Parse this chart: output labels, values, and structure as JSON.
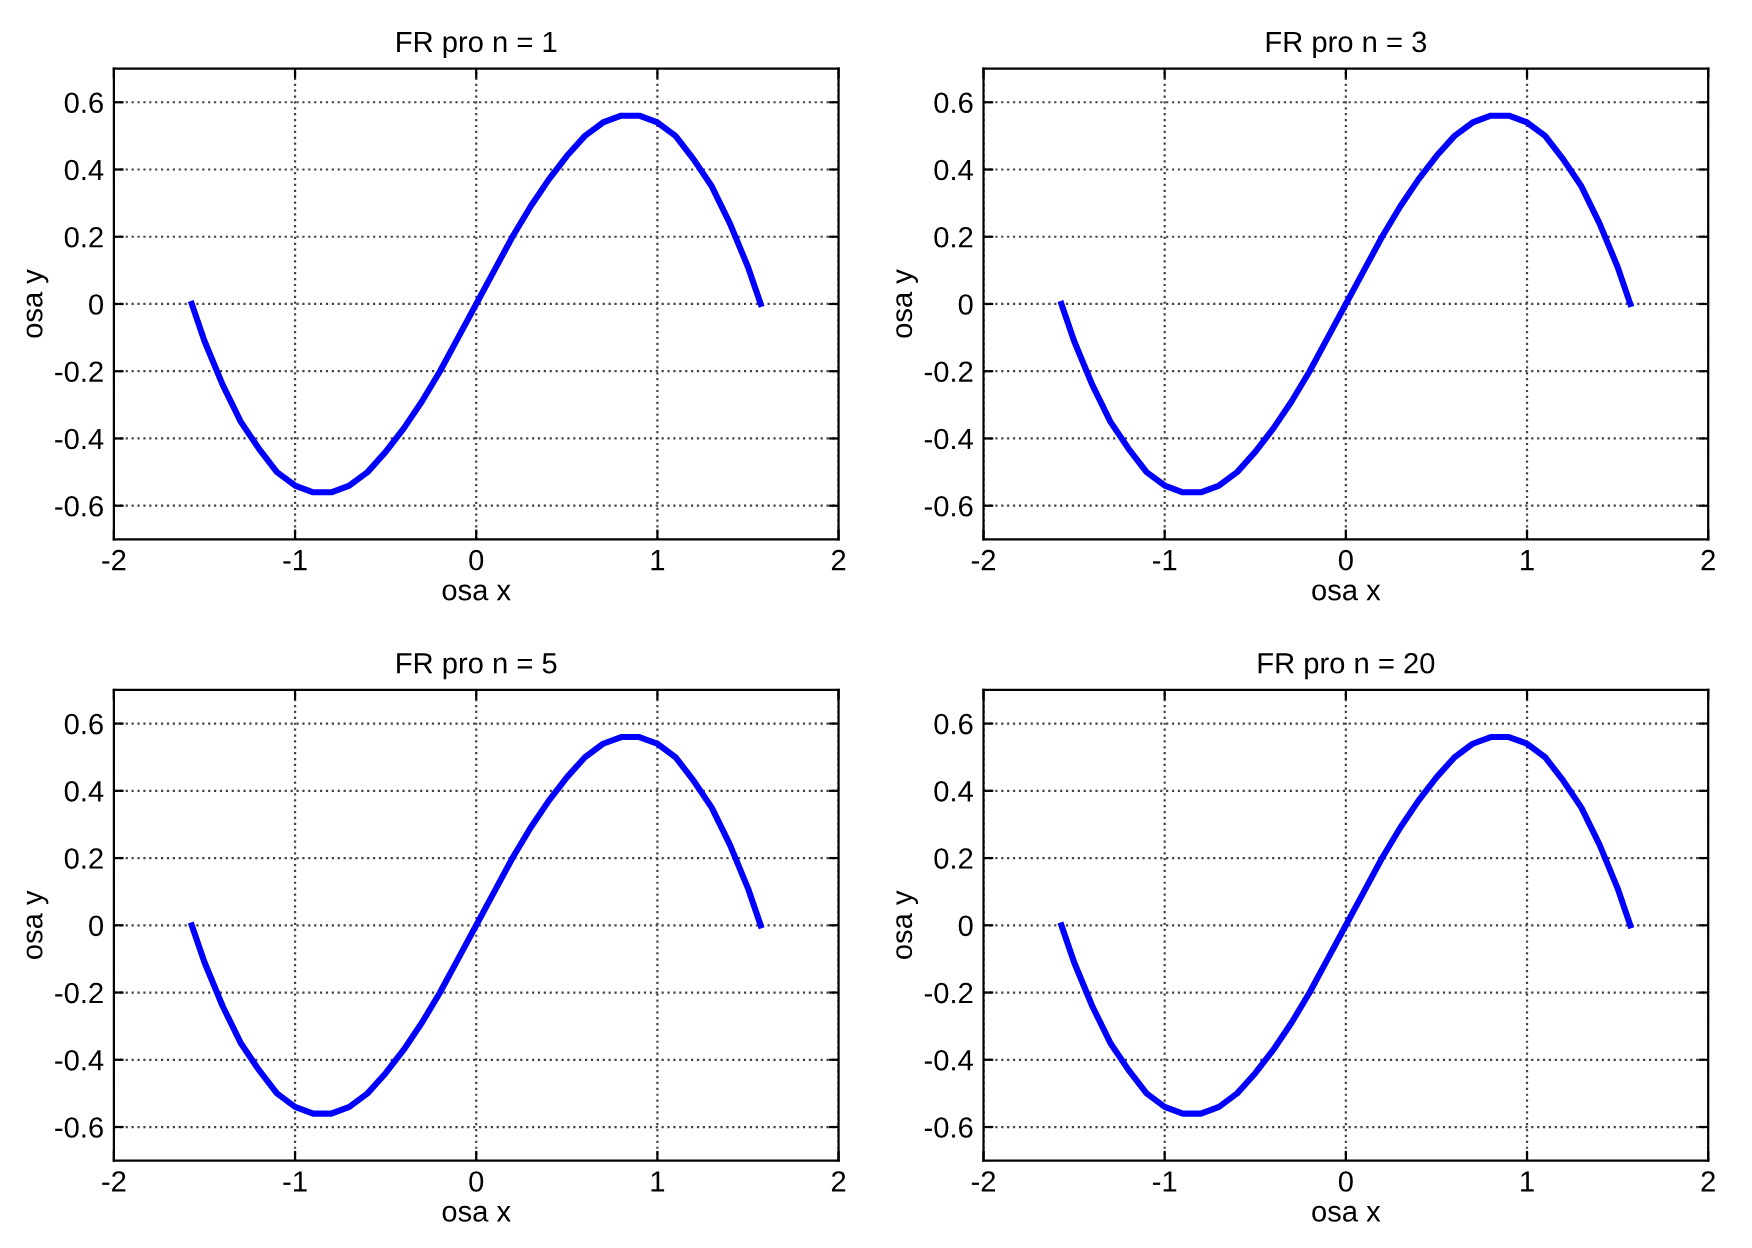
{
  "chart_data": [
    {
      "type": "line",
      "title": "FR pro n = 1",
      "xlabel": "osa x",
      "ylabel": "osa y",
      "xlim": [
        -2,
        2
      ],
      "xticks": [
        -2,
        -1,
        0,
        1,
        2
      ],
      "ylim": [
        -0.7,
        0.7
      ],
      "yticks": [
        -0.6,
        -0.4,
        -0.2,
        0,
        0.2,
        0.4,
        0.6
      ],
      "grid": true,
      "line_style": "solid",
      "marker": "none",
      "series": [
        {
          "color": "#0000ff",
          "x": [
            -1.57,
            -1.5,
            -1.4,
            -1.3,
            -1.2,
            -1.1,
            -1.0,
            -0.9,
            -0.8,
            -0.7,
            -0.6,
            -0.5,
            -0.4,
            -0.3,
            -0.2,
            -0.1,
            0,
            0.1,
            0.2,
            0.3,
            0.4,
            0.5,
            0.6,
            0.7,
            0.8,
            0.9,
            1.0,
            1.1,
            1.2,
            1.3,
            1.4,
            1.5,
            1.57
          ],
          "values": [
            0.0,
            -0.11,
            -0.24,
            -0.35,
            -0.43,
            -0.5,
            -0.54,
            -0.56,
            -0.56,
            -0.54,
            -0.5,
            -0.44,
            -0.37,
            -0.29,
            -0.2,
            -0.1,
            0,
            0.1,
            0.2,
            0.29,
            0.37,
            0.44,
            0.5,
            0.54,
            0.56,
            0.56,
            0.54,
            0.5,
            0.43,
            0.35,
            0.24,
            0.11,
            0.0
          ]
        }
      ]
    },
    {
      "type": "line",
      "title": "FR pro n = 3",
      "xlabel": "osa x",
      "ylabel": "osa y",
      "xlim": [
        -2,
        2
      ],
      "xticks": [
        -2,
        -1,
        0,
        1,
        2
      ],
      "ylim": [
        -0.7,
        0.7
      ],
      "yticks": [
        -0.6,
        -0.4,
        -0.2,
        0,
        0.2,
        0.4,
        0.6
      ],
      "grid": true,
      "line_style": "solid",
      "marker": "none",
      "series": [
        {
          "color": "#0000ff",
          "x": [
            -1.57,
            -1.5,
            -1.4,
            -1.3,
            -1.2,
            -1.1,
            -1.0,
            -0.9,
            -0.8,
            -0.7,
            -0.6,
            -0.5,
            -0.4,
            -0.3,
            -0.2,
            -0.1,
            0,
            0.1,
            0.2,
            0.3,
            0.4,
            0.5,
            0.6,
            0.7,
            0.8,
            0.9,
            1.0,
            1.1,
            1.2,
            1.3,
            1.4,
            1.5,
            1.57
          ],
          "values": [
            0.0,
            -0.11,
            -0.24,
            -0.35,
            -0.43,
            -0.5,
            -0.54,
            -0.56,
            -0.56,
            -0.54,
            -0.5,
            -0.44,
            -0.37,
            -0.29,
            -0.2,
            -0.1,
            0,
            0.1,
            0.2,
            0.29,
            0.37,
            0.44,
            0.5,
            0.54,
            0.56,
            0.56,
            0.54,
            0.5,
            0.43,
            0.35,
            0.24,
            0.11,
            0.0
          ]
        }
      ]
    },
    {
      "type": "line",
      "title": "FR pro n = 5",
      "xlabel": "osa x",
      "ylabel": "osa y",
      "xlim": [
        -2,
        2
      ],
      "xticks": [
        -2,
        -1,
        0,
        1,
        2
      ],
      "ylim": [
        -0.7,
        0.7
      ],
      "yticks": [
        -0.6,
        -0.4,
        -0.2,
        0,
        0.2,
        0.4,
        0.6
      ],
      "grid": true,
      "line_style": "solid",
      "marker": "none",
      "series": [
        {
          "color": "#0000ff",
          "x": [
            -1.57,
            -1.5,
            -1.4,
            -1.3,
            -1.2,
            -1.1,
            -1.0,
            -0.9,
            -0.8,
            -0.7,
            -0.6,
            -0.5,
            -0.4,
            -0.3,
            -0.2,
            -0.1,
            0,
            0.1,
            0.2,
            0.3,
            0.4,
            0.5,
            0.6,
            0.7,
            0.8,
            0.9,
            1.0,
            1.1,
            1.2,
            1.3,
            1.4,
            1.5,
            1.57
          ],
          "values": [
            0.0,
            -0.11,
            -0.24,
            -0.35,
            -0.43,
            -0.5,
            -0.54,
            -0.56,
            -0.56,
            -0.54,
            -0.5,
            -0.44,
            -0.37,
            -0.29,
            -0.2,
            -0.1,
            0,
            0.1,
            0.2,
            0.29,
            0.37,
            0.44,
            0.5,
            0.54,
            0.56,
            0.56,
            0.54,
            0.5,
            0.43,
            0.35,
            0.24,
            0.11,
            0.0
          ]
        }
      ]
    },
    {
      "type": "line",
      "title": "FR pro n = 20",
      "xlabel": "osa x",
      "ylabel": "osa y",
      "xlim": [
        -2,
        2
      ],
      "xticks": [
        -2,
        -1,
        0,
        1,
        2
      ],
      "ylim": [
        -0.7,
        0.7
      ],
      "yticks": [
        -0.6,
        -0.4,
        -0.2,
        0,
        0.2,
        0.4,
        0.6
      ],
      "grid": true,
      "line_style": "solid",
      "marker": "none",
      "series": [
        {
          "color": "#0000ff",
          "x": [
            -1.57,
            -1.5,
            -1.4,
            -1.3,
            -1.2,
            -1.1,
            -1.0,
            -0.9,
            -0.8,
            -0.7,
            -0.6,
            -0.5,
            -0.4,
            -0.3,
            -0.2,
            -0.1,
            0,
            0.1,
            0.2,
            0.3,
            0.4,
            0.5,
            0.6,
            0.7,
            0.8,
            0.9,
            1.0,
            1.1,
            1.2,
            1.3,
            1.4,
            1.5,
            1.57
          ],
          "values": [
            0.0,
            -0.11,
            -0.24,
            -0.35,
            -0.43,
            -0.5,
            -0.54,
            -0.56,
            -0.56,
            -0.54,
            -0.5,
            -0.44,
            -0.37,
            -0.29,
            -0.2,
            -0.1,
            0,
            0.1,
            0.2,
            0.29,
            0.37,
            0.44,
            0.5,
            0.54,
            0.56,
            0.56,
            0.54,
            0.5,
            0.43,
            0.35,
            0.24,
            0.11,
            0.0
          ]
        }
      ]
    }
  ]
}
